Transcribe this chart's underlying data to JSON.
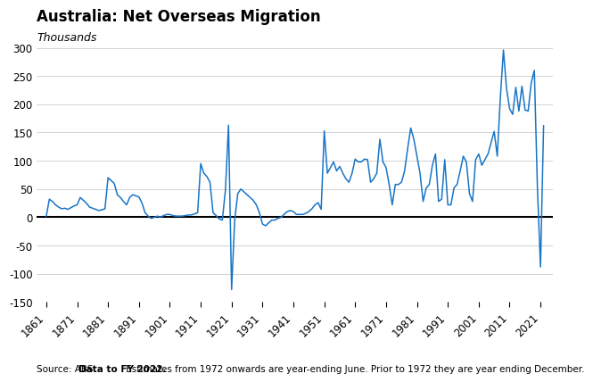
{
  "title": "Australia: Net Overseas Migration",
  "ylabel": "Thousands",
  "source_text_normal": "Source: ABS.  ",
  "source_text_bold": "Data to FY 2022.",
  "source_text_end": " Estimates from 1972 onwards are year-ending June. Prior to 1972 they are year ending December.",
  "line_color": "#1875c7",
  "background_color": "#ffffff",
  "ylim": [
    -150,
    310
  ],
  "yticks": [
    -150,
    -100,
    -50,
    0,
    50,
    100,
    150,
    200,
    250,
    300
  ],
  "xtick_years": [
    1861,
    1871,
    1881,
    1891,
    1901,
    1911,
    1921,
    1931,
    1941,
    1951,
    1961,
    1971,
    1981,
    1991,
    2001,
    2011,
    2021
  ],
  "xlim": [
    1858,
    2025
  ],
  "years": [
    1861,
    1862,
    1863,
    1864,
    1865,
    1866,
    1867,
    1868,
    1869,
    1870,
    1871,
    1872,
    1873,
    1874,
    1875,
    1876,
    1877,
    1878,
    1879,
    1880,
    1881,
    1882,
    1883,
    1884,
    1885,
    1886,
    1887,
    1888,
    1889,
    1890,
    1891,
    1892,
    1893,
    1894,
    1895,
    1896,
    1897,
    1898,
    1899,
    1900,
    1901,
    1902,
    1903,
    1904,
    1905,
    1906,
    1907,
    1908,
    1909,
    1910,
    1911,
    1912,
    1913,
    1914,
    1915,
    1916,
    1917,
    1918,
    1919,
    1920,
    1921,
    1922,
    1923,
    1924,
    1925,
    1926,
    1927,
    1928,
    1929,
    1930,
    1931,
    1932,
    1933,
    1934,
    1935,
    1936,
    1937,
    1938,
    1939,
    1940,
    1941,
    1942,
    1943,
    1944,
    1945,
    1946,
    1947,
    1948,
    1949,
    1950,
    1951,
    1952,
    1953,
    1954,
    1955,
    1956,
    1957,
    1958,
    1959,
    1960,
    1961,
    1962,
    1963,
    1964,
    1965,
    1966,
    1967,
    1968,
    1969,
    1970,
    1971,
    1972,
    1973,
    1974,
    1975,
    1976,
    1977,
    1978,
    1979,
    1980,
    1981,
    1982,
    1983,
    1984,
    1985,
    1986,
    1987,
    1988,
    1989,
    1990,
    1991,
    1992,
    1993,
    1994,
    1995,
    1996,
    1997,
    1998,
    1999,
    2000,
    2001,
    2002,
    2003,
    2004,
    2005,
    2006,
    2007,
    2008,
    2009,
    2010,
    2011,
    2012,
    2013,
    2014,
    2015,
    2016,
    2017,
    2018,
    2019,
    2020,
    2021,
    2022
  ],
  "values": [
    2,
    32,
    28,
    22,
    18,
    15,
    16,
    14,
    17,
    20,
    22,
    35,
    30,
    25,
    18,
    16,
    14,
    12,
    13,
    15,
    70,
    65,
    60,
    40,
    35,
    28,
    22,
    35,
    40,
    38,
    36,
    25,
    8,
    2,
    -2,
    0,
    2,
    0,
    3,
    5,
    5,
    3,
    2,
    2,
    2,
    3,
    4,
    4,
    6,
    8,
    95,
    78,
    72,
    62,
    8,
    3,
    -3,
    -5,
    48,
    163,
    -128,
    -5,
    42,
    50,
    45,
    40,
    35,
    30,
    22,
    8,
    -12,
    -15,
    -10,
    -5,
    -5,
    -2,
    0,
    5,
    10,
    12,
    10,
    5,
    5,
    5,
    7,
    10,
    15,
    22,
    26,
    14,
    153,
    78,
    88,
    98,
    82,
    90,
    78,
    68,
    62,
    78,
    103,
    98,
    98,
    103,
    102,
    62,
    68,
    78,
    138,
    98,
    88,
    58,
    22,
    58,
    58,
    62,
    82,
    122,
    158,
    138,
    108,
    78,
    28,
    52,
    58,
    92,
    112,
    28,
    32,
    102,
    22,
    22,
    52,
    58,
    82,
    108,
    98,
    42,
    28,
    102,
    112,
    92,
    102,
    112,
    132,
    152,
    108,
    212,
    296,
    228,
    192,
    182,
    230,
    188,
    232,
    190,
    188,
    238,
    260,
    52,
    -88,
    162
  ]
}
